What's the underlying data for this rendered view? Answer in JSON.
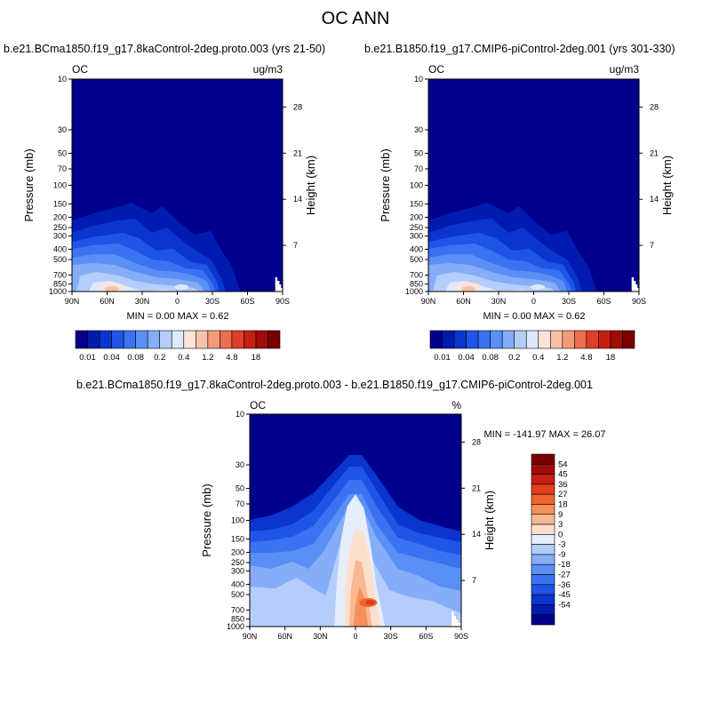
{
  "figure": {
    "title": "OC ANN"
  },
  "panels": [
    {
      "id": "top-left",
      "title": "b.e21.BCma1850.f19_g17.8kaControl-2deg.proto.003 (yrs 21-50)",
      "variable": "OC",
      "units": "ug/m3",
      "min_max_text": "MIN =   0.00   MAX =   0.62"
    },
    {
      "id": "top-right",
      "title": "b.e21.B1850.f19_g17.CMIP6-piControl-2deg.001 (yrs 301-330)",
      "variable": "OC",
      "units": "ug/m3",
      "min_max_text": "MIN =   0.00   MAX =   0.62"
    },
    {
      "id": "bottom-diff",
      "title": "b.e21.BCma1850.f19_g17.8kaControl-2deg.proto.003 - b.e21.B1850.f19_g17.CMIP6-piControl-2deg.001",
      "variable": "OC",
      "units": "%",
      "min_max_text": "MIN = -141.97  MAX =  26.07"
    }
  ],
  "axes": {
    "ylabel_left": "Pressure (mb)",
    "ylabel_right": "Height (km)",
    "pressure_ticks": [
      "10",
      "30",
      "50",
      "70",
      "100",
      "150",
      "200",
      "250",
      "300",
      "400",
      "500",
      "700",
      "850",
      "1000"
    ],
    "height_ticks": [
      "28",
      "21",
      "14",
      "7"
    ],
    "lat_ticks": [
      "90N",
      "60N",
      "30N",
      "0",
      "30S",
      "60S",
      "90S"
    ]
  },
  "colorbars": {
    "abs_labels": [
      "0.01",
      "0.04",
      "0.08",
      "0.2",
      "0.4",
      "1.2",
      "4.8",
      "18"
    ],
    "diff_labels": [
      "54",
      "45",
      "36",
      "27",
      "18",
      "9",
      "3",
      "0",
      "-3",
      "-9",
      "-18",
      "-27",
      "-36",
      "-45",
      "-54"
    ]
  },
  "chart_data": [
    {
      "type": "heatmap",
      "title": "b.e21.BCma1850.f19_g17.8kaControl-2deg.proto.003 (yrs 21-50)",
      "ylabel": "Pressure (mb)",
      "ylabel_right": "Height (km)",
      "y_scale": "log-pressure",
      "ylim": [
        1000,
        10
      ],
      "xlim": [
        "90N",
        "90S"
      ],
      "units": "ug/m3",
      "min": 0.0,
      "max": 0.62,
      "contour_levels": [
        0.01,
        0.02,
        0.04,
        0.06,
        0.08,
        0.1,
        0.2,
        0.3,
        0.4,
        0.8,
        1.2,
        2.4,
        4.8,
        9,
        18
      ]
    },
    {
      "type": "heatmap",
      "title": "b.e21.B1850.f19_g17.CMIP6-piControl-2deg.001 (yrs 301-330)",
      "ylabel": "Pressure (mb)",
      "ylabel_right": "Height (km)",
      "y_scale": "log-pressure",
      "ylim": [
        1000,
        10
      ],
      "xlim": [
        "90N",
        "90S"
      ],
      "units": "ug/m3",
      "min": 0.0,
      "max": 0.62,
      "contour_levels": [
        0.01,
        0.02,
        0.04,
        0.06,
        0.08,
        0.1,
        0.2,
        0.3,
        0.4,
        0.8,
        1.2,
        2.4,
        4.8,
        9,
        18
      ]
    },
    {
      "type": "heatmap",
      "title": "b.e21.BCma1850.f19_g17.8kaControl-2deg.proto.003 - b.e21.B1850.f19_g17.CMIP6-piControl-2deg.001",
      "ylabel": "Pressure (mb)",
      "ylabel_right": "Height (km)",
      "y_scale": "log-pressure",
      "ylim": [
        1000,
        10
      ],
      "xlim": [
        "90N",
        "90S"
      ],
      "units": "%",
      "min": -141.97,
      "max": 26.07,
      "contour_levels": [
        -54,
        -45,
        -36,
        -27,
        -18,
        -9,
        -3,
        0,
        3,
        9,
        18,
        27,
        36,
        45,
        54
      ]
    }
  ],
  "colors": {
    "abs_palette": [
      "#00008c",
      "#001bb0",
      "#0a35cf",
      "#1f55e6",
      "#3a73f1",
      "#5a8ff6",
      "#86adf8",
      "#b4cdfa",
      "#dfe9fb",
      "#fde4d8",
      "#f9c2a8",
      "#f49a7c",
      "#ec6d4f",
      "#de4027",
      "#c61e10",
      "#a00c06",
      "#7a0000"
    ],
    "diff_palette": [
      "#7a0000",
      "#a00c06",
      "#c81e10",
      "#e03e1c",
      "#f0652f",
      "#f6905a",
      "#f9b893",
      "#fde0cc",
      "#e6eefc",
      "#b4cdfa",
      "#86adf8",
      "#5a8ff6",
      "#3a73f1",
      "#1f55e6",
      "#0a35cf",
      "#001bb0",
      "#00008c"
    ]
  }
}
